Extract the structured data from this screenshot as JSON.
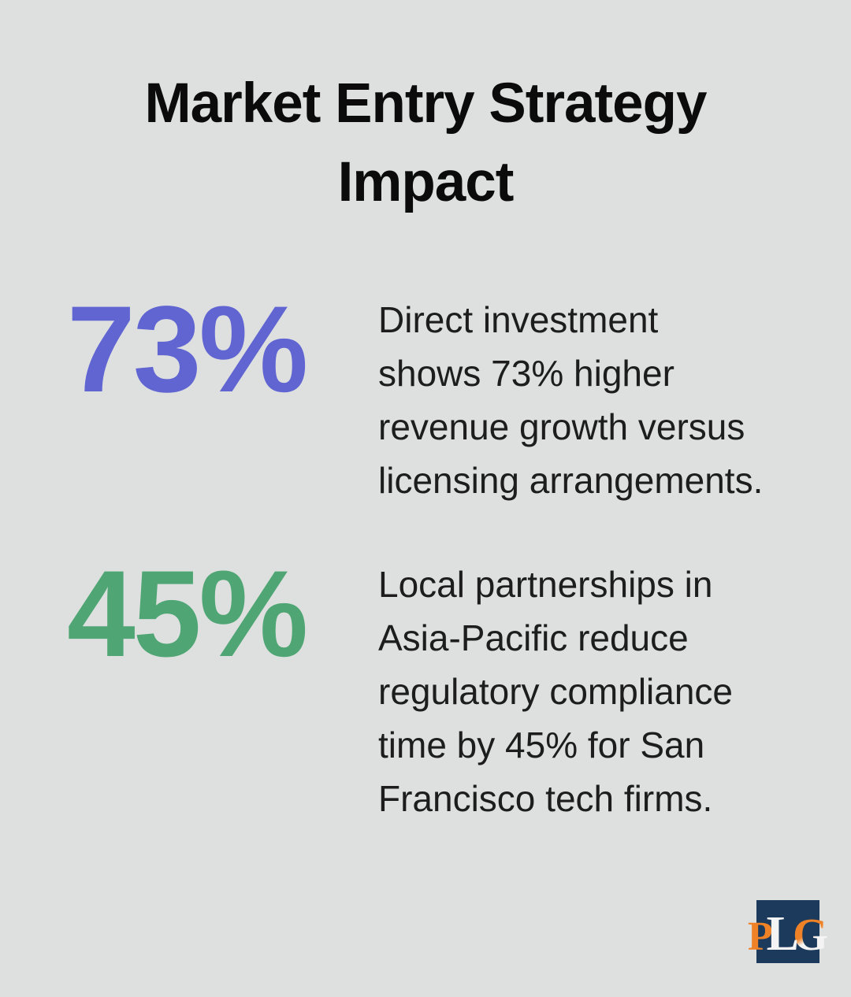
{
  "title": "Market Entry Strategy\nImpact",
  "stats": [
    {
      "value": "73%",
      "accent_color": "#6065d2",
      "description": "Direct investment\nshows 73% higher\nrevenue growth versus\nlicensing arrangements."
    },
    {
      "value": "45%",
      "accent_color": "#4fa674",
      "description": "Local partnerships in\nAsia-Pacific reduce\nregulatory compliance\ntime by 45% for San\nFrancisco tech firms."
    }
  ],
  "logo": {
    "letters": [
      "P",
      "L",
      "G"
    ],
    "background_color": "#1b3a5c",
    "orange": "#ef8226",
    "white": "#f4f4f4"
  },
  "colors": {
    "page_background": "#dee0e0",
    "title_text": "#0b0b0b",
    "body_text": "#1d1d1d"
  }
}
